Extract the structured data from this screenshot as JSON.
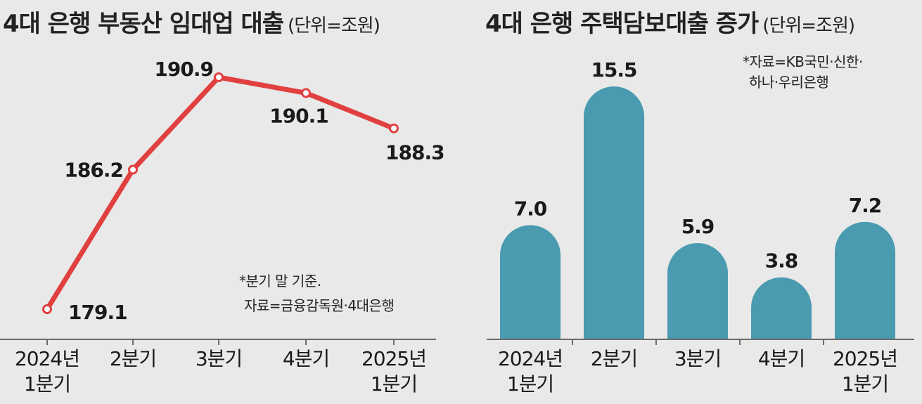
{
  "chart_data": [
    {
      "type": "line",
      "title": "4대 은행 부동산 임대업 대출",
      "unit": "(단위=조원)",
      "categories": [
        "2024년 1분기",
        "2분기",
        "3분기",
        "4분기",
        "2025년 1분기"
      ],
      "category_lines": [
        [
          "2024년",
          "1분기"
        ],
        [
          "2분기"
        ],
        [
          "3분기"
        ],
        [
          "4분기"
        ],
        [
          "2025년",
          "1분기"
        ]
      ],
      "series": [
        {
          "values": [
            179.1,
            186.2,
            190.9,
            190.1,
            188.3
          ],
          "color": "#e0403f"
        }
      ],
      "value_labels": [
        "179.1",
        "186.2",
        "190.9",
        "190.1",
        "188.3"
      ],
      "notes": [
        "*분기 말 기준.",
        "자료=금융감독원·4대은행"
      ],
      "grid": false
    },
    {
      "type": "bar",
      "title": "4대 은행 주택담보대출 증가",
      "unit": "(단위=조원)",
      "categories": [
        "2024년 1분기",
        "2분기",
        "3분기",
        "4분기",
        "2025년 1분기"
      ],
      "category_lines": [
        [
          "2024년",
          "1분기"
        ],
        [
          "2분기"
        ],
        [
          "3분기"
        ],
        [
          "4분기"
        ],
        [
          "2025년",
          "1분기"
        ]
      ],
      "values": [
        7.0,
        15.5,
        5.9,
        3.8,
        7.2
      ],
      "value_labels": [
        "7.0",
        "15.5",
        "5.9",
        "3.8",
        "7.2"
      ],
      "color": "#4a9ab0",
      "notes": [
        "*자료=KB국민·신한·",
        "하나·우리은행"
      ],
      "grid": false
    }
  ]
}
